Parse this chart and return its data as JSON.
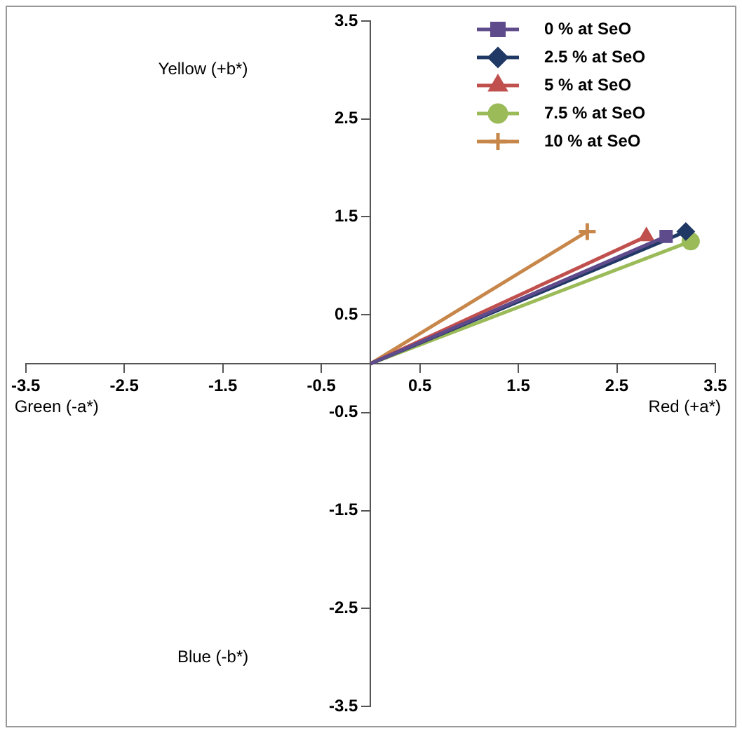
{
  "chart_data": {
    "type": "line",
    "annotations": [
      "Yellow (+b*)",
      "Green (-a*)",
      "Red (+a*)",
      "Blue (-b*)"
    ],
    "series": [
      {
        "name": "0 % at SeO",
        "color": "#5e4b8b",
        "marker": "square",
        "x": [
          0,
          3.0
        ],
        "values": [
          0,
          1.3
        ]
      },
      {
        "name": "2.5 % at SeO",
        "color": "#1f3864",
        "marker": "diamond",
        "x": [
          0,
          3.2
        ],
        "values": [
          0,
          1.35
        ]
      },
      {
        "name": "5 % at SeO",
        "color": "#c0504d",
        "marker": "triangle",
        "x": [
          0,
          2.8
        ],
        "values": [
          0,
          1.3
        ]
      },
      {
        "name": "7.5 % at SeO",
        "color": "#9bbb59",
        "marker": "circle",
        "x": [
          0,
          3.25
        ],
        "values": [
          0,
          1.25
        ]
      },
      {
        "name": "10 % at SeO",
        "color": "#c8874a",
        "marker": "cross",
        "x": [
          0,
          2.2
        ],
        "values": [
          0,
          1.35
        ]
      }
    ],
    "xlim": [
      -3.5,
      3.5
    ],
    "xticks": [
      -3.5,
      -2.5,
      -1.5,
      -0.5,
      0.5,
      1.5,
      2.5,
      3.5
    ],
    "ylim": [
      -3.5,
      3.5
    ],
    "yticks": [
      -3.5,
      -2.5,
      -1.5,
      -0.5,
      0.5,
      1.5,
      2.5,
      3.5
    ],
    "grid": false,
    "legend": "top right",
    "line_style": "solid"
  }
}
